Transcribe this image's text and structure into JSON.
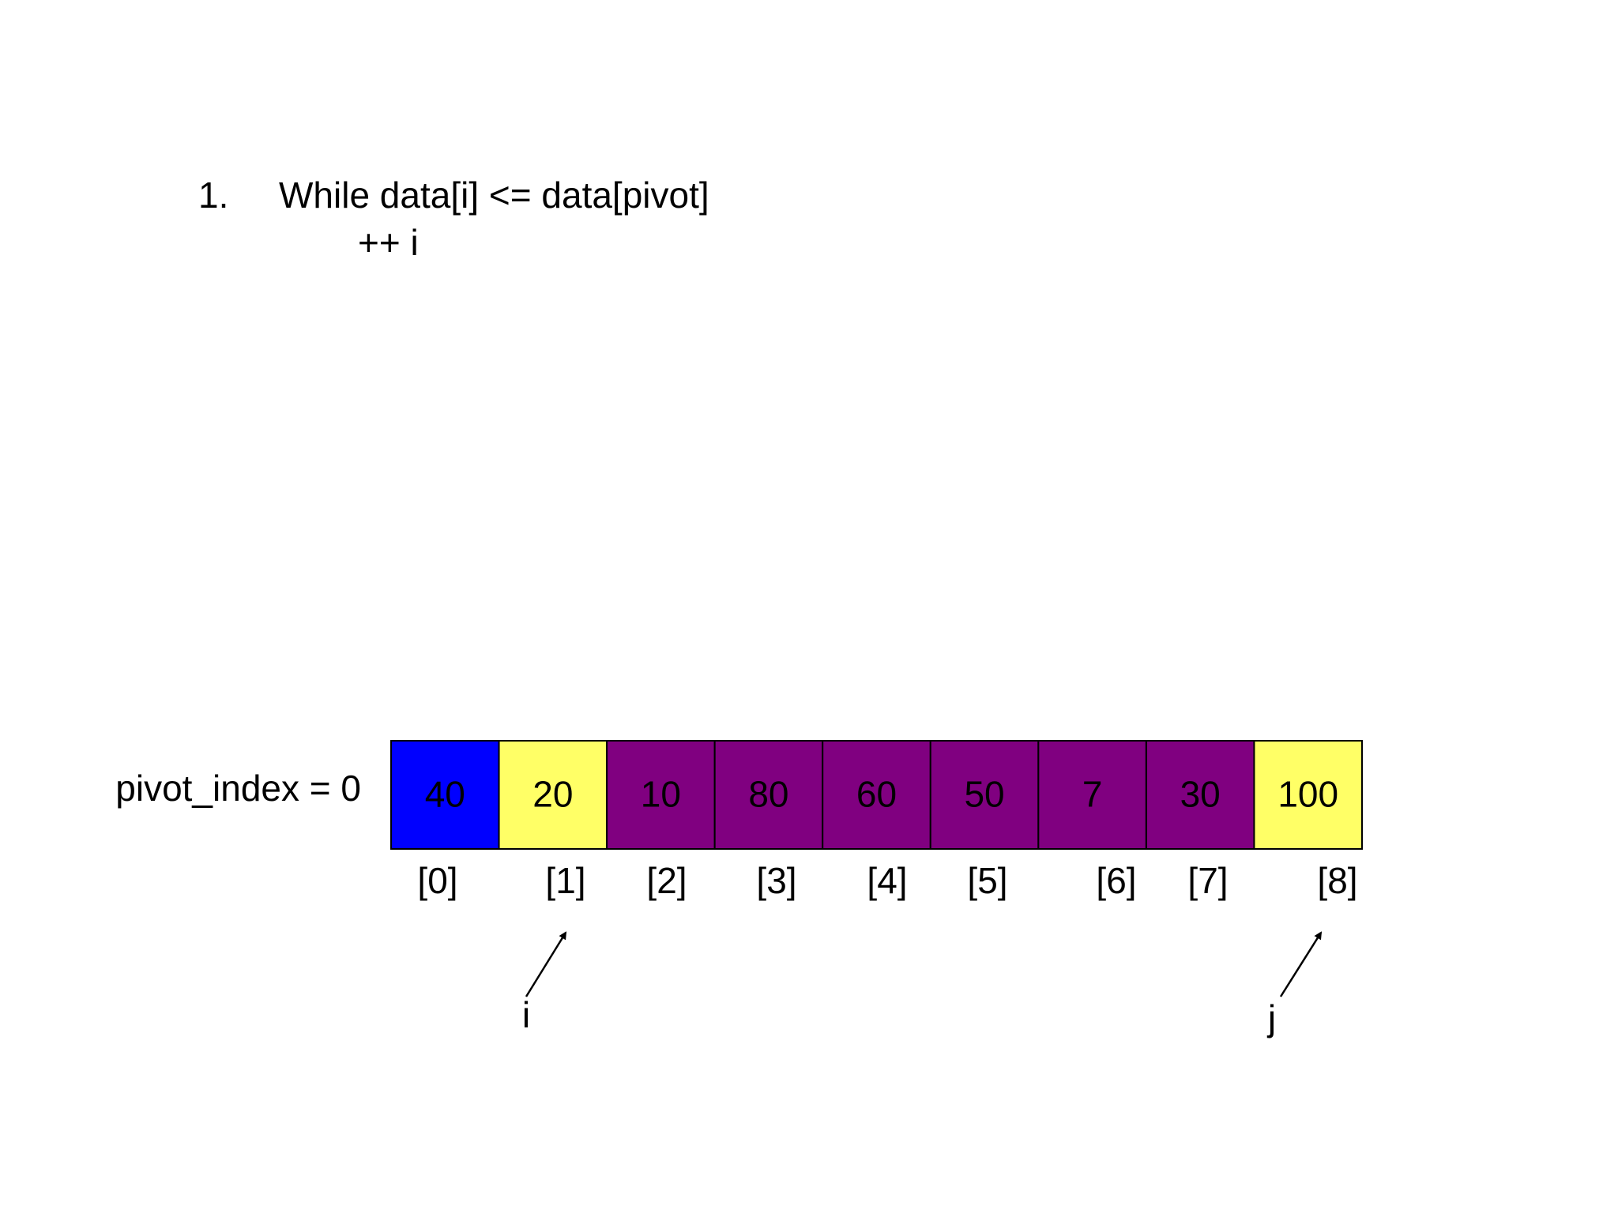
{
  "step": {
    "number": "1.",
    "text": "While data[i] <= data[pivot]",
    "body": "++ i"
  },
  "pivot_label": "pivot_index = 0",
  "cells": [
    {
      "value": "40",
      "color": "#0000ff"
    },
    {
      "value": "20",
      "color": "#ffff66"
    },
    {
      "value": "10",
      "color": "#800080"
    },
    {
      "value": "80",
      "color": "#800080"
    },
    {
      "value": "60",
      "color": "#800080"
    },
    {
      "value": "50",
      "color": "#800080"
    },
    {
      "value": "7",
      "color": "#800080"
    },
    {
      "value": "30",
      "color": "#800080"
    },
    {
      "value": "100",
      "color": "#ffff66"
    }
  ],
  "indices": [
    "[0]",
    "[1]",
    "[2]",
    "[3]",
    "[4]",
    "[5]",
    "[6]",
    "[7]",
    "[8]"
  ],
  "pointers": {
    "i": "i",
    "j": "j"
  }
}
